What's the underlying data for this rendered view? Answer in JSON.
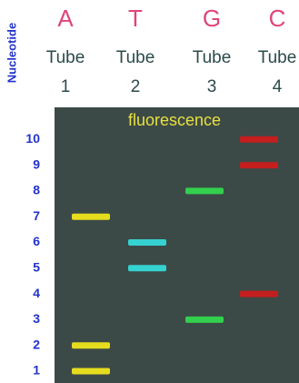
{
  "axis_label": "Nucleotide",
  "title": "fluorescence",
  "rows": [
    1,
    2,
    3,
    4,
    5,
    6,
    7,
    8,
    9,
    10
  ],
  "lanes": [
    {
      "base": "A",
      "tube": "Tube",
      "number": "1",
      "color": "#e6dc1e",
      "bands": [
        1,
        2,
        7
      ]
    },
    {
      "base": "T",
      "tube": "Tube",
      "number": "2",
      "color": "#35d2d2",
      "bands": [
        5,
        6
      ]
    },
    {
      "base": "G",
      "tube": "Tube",
      "number": "3",
      "color": "#32d04e",
      "bands": [
        3,
        8
      ]
    },
    {
      "base": "C",
      "tube": "Tube",
      "number": "4",
      "color": "#c41e1e",
      "bands": [
        4,
        9,
        10
      ]
    }
  ]
}
